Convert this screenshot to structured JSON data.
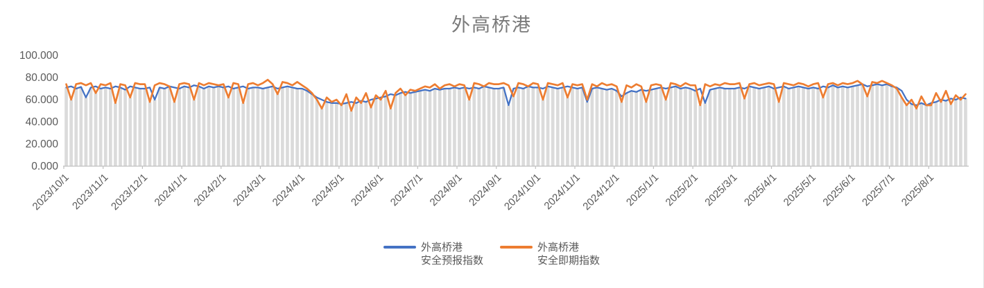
{
  "chart": {
    "title": "外高桥港",
    "title_color": "#7A7A7A"
  },
  "legend": {
    "items": [
      {
        "line1": "外高桥港",
        "line2": "安全预报指数",
        "color": "#4472C4"
      },
      {
        "line1": "外高桥港",
        "line2": "安全即期指数",
        "color": "#ED7D31"
      }
    ]
  },
  "chart_data": {
    "type": "line",
    "title": "外高桥港",
    "xlabel": "",
    "ylabel": "",
    "ylim": [
      0,
      100
    ],
    "grid": false,
    "legend_position": "bottom",
    "bar_color": "#DBDBDB",
    "axis_color": "#BFBFBF",
    "label_color": "#595959",
    "background_bars": "dense daily gray bars filling from 0 up to the lower envelope of the two lines",
    "y_ticks": [
      "100.000",
      "80.000",
      "60.000",
      "40.000",
      "20.000",
      "0.000"
    ],
    "points_per_month": 8,
    "x_tick_labels": [
      "2023/10/1",
      "2023/11/1",
      "2023/12/1",
      "2024/1/1",
      "2024/2/1",
      "2024/3/1",
      "2024/4/1",
      "2024/5/1",
      "2024/6/1",
      "2024/7/1",
      "2024/8/1",
      "2024/9/1",
      "2024/10/1",
      "2024/11/1",
      "2024/12/1",
      "2025/1/1",
      "2025/2/1",
      "2025/3/1",
      "2025/4/1",
      "2025/5/1",
      "2025/6/1",
      "2025/7/1",
      "2025/8/1"
    ],
    "series": [
      {
        "name": "外高桥港安全预报指数",
        "color": "#4472C4",
        "values": [
          71,
          72,
          70,
          71.5,
          62,
          71,
          72,
          70,
          71,
          70,
          72,
          71,
          69,
          72,
          71,
          70,
          70,
          71,
          60,
          71,
          70,
          72,
          71,
          70,
          72,
          71,
          73,
          72,
          70,
          72,
          71,
          72,
          71,
          72,
          70,
          71,
          72,
          70,
          71,
          71,
          70,
          71,
          72,
          70,
          71,
          72,
          71,
          70,
          70,
          68,
          65,
          62,
          60,
          58,
          57,
          57,
          56,
          57,
          58,
          57,
          59,
          58,
          60,
          61,
          62,
          63,
          65,
          64,
          66,
          67,
          66,
          67,
          68,
          69,
          68,
          70,
          69,
          70,
          70,
          71,
          70,
          71,
          70,
          71,
          70,
          72,
          71,
          70,
          70,
          71,
          55,
          70,
          71,
          70,
          72,
          71,
          71,
          70,
          72,
          71,
          70,
          71,
          72,
          71,
          70,
          71,
          58,
          70,
          71,
          70,
          69,
          70,
          68,
          63,
          66,
          68,
          67,
          69,
          68,
          69,
          70,
          71,
          70,
          71,
          72,
          70,
          71,
          70,
          68,
          70,
          57,
          69,
          70,
          71,
          70,
          70,
          70,
          71,
          70,
          72,
          71,
          70,
          71,
          72,
          70,
          71,
          72,
          70,
          71,
          72,
          71,
          70,
          71,
          70,
          72,
          71,
          73,
          71,
          72,
          71,
          72,
          73,
          74,
          72,
          73,
          74,
          73,
          74,
          72,
          71,
          68,
          60,
          56,
          55,
          57,
          55,
          57,
          58,
          60,
          59,
          61,
          60,
          62,
          61
        ]
      },
      {
        "name": "外高桥港安全即期指数",
        "color": "#ED7D31",
        "values": [
          74,
          60,
          74,
          75,
          73,
          75,
          66,
          74,
          73,
          75,
          57,
          74,
          73,
          62,
          75,
          74,
          74,
          58,
          73,
          75,
          74,
          72,
          58,
          74,
          75,
          74,
          60,
          75,
          73,
          75,
          74,
          73,
          74,
          62,
          75,
          74,
          57,
          74,
          75,
          73,
          75,
          78,
          74,
          65,
          76,
          75,
          73,
          76,
          73,
          70,
          66,
          60,
          52,
          62,
          58,
          60,
          55,
          65,
          50,
          62,
          57,
          66,
          53,
          64,
          60,
          68,
          52,
          66,
          70,
          64,
          69,
          68,
          70,
          72,
          71,
          74,
          70,
          73,
          74,
          72,
          74,
          73,
          60,
          75,
          74,
          72,
          75,
          74,
          74,
          75,
          73,
          63,
          75,
          74,
          72,
          75,
          74,
          60,
          75,
          74,
          73,
          75,
          62,
          74,
          73,
          74,
          60,
          74,
          72,
          75,
          73,
          74,
          72,
          58,
          73,
          71,
          74,
          72,
          58,
          73,
          74,
          73,
          60,
          75,
          74,
          72,
          75,
          73,
          73,
          55,
          74,
          72,
          74,
          73,
          75,
          74,
          74,
          75,
          61,
          74,
          75,
          73,
          74,
          75,
          74,
          58,
          75,
          74,
          73,
          75,
          74,
          72,
          74,
          75,
          62,
          74,
          75,
          73,
          75,
          74,
          75,
          77,
          74,
          63,
          76,
          75,
          77,
          75,
          73,
          70,
          62,
          55,
          60,
          52,
          63,
          55,
          55,
          66,
          58,
          68,
          56,
          64,
          60,
          65
        ]
      }
    ]
  }
}
